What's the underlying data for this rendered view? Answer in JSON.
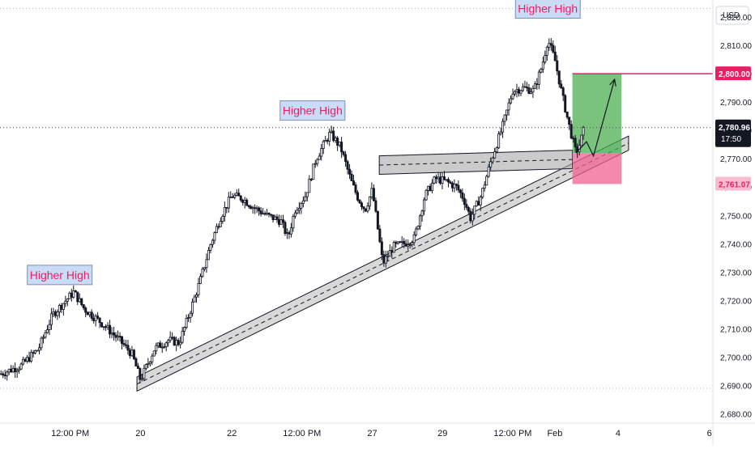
{
  "chart_data": {
    "type": "candlestick",
    "currency": "USD",
    "y_ticks": [
      "2,680.00",
      "2,690.00",
      "2,700.00",
      "2,710.00",
      "2,720.00",
      "2,730.00",
      "2,740.00",
      "2,750.00",
      "2,760.00",
      "2,770.00",
      "2,780.00",
      "2,790.00",
      "2,800.00",
      "2,810.00",
      "2,820.00"
    ],
    "ylim": [
      2677,
      2826
    ],
    "x_ticks": [
      {
        "label": "12:00 PM",
        "x": 1.0
      },
      {
        "label": "20",
        "x": 2.0
      },
      {
        "label": "22",
        "x": 3.3
      },
      {
        "label": "12:00 PM",
        "x": 4.3
      },
      {
        "label": "27",
        "x": 5.3
      },
      {
        "label": "29",
        "x": 6.3
      },
      {
        "label": "12:00 PM",
        "x": 7.3
      },
      {
        "label": "Feb",
        "x": 7.9
      },
      {
        "label": "4",
        "x": 8.8
      },
      {
        "label": "6",
        "x": 10.1
      }
    ],
    "price_path": [
      [
        0.0,
        2694
      ],
      [
        0.3,
        2697
      ],
      [
        0.55,
        2703
      ],
      [
        0.75,
        2715
      ],
      [
        0.9,
        2719
      ],
      [
        1.05,
        2723
      ],
      [
        1.2,
        2717
      ],
      [
        1.45,
        2712
      ],
      [
        1.7,
        2706
      ],
      [
        1.88,
        2701
      ],
      [
        2.0,
        2692
      ],
      [
        2.2,
        2703
      ],
      [
        2.4,
        2706
      ],
      [
        2.55,
        2705
      ],
      [
        2.65,
        2712
      ],
      [
        2.85,
        2727
      ],
      [
        3.0,
        2740
      ],
      [
        3.15,
        2750
      ],
      [
        3.3,
        2757
      ],
      [
        3.45,
        2756
      ],
      [
        3.6,
        2753
      ],
      [
        3.8,
        2750
      ],
      [
        4.0,
        2748
      ],
      [
        4.1,
        2742
      ],
      [
        4.2,
        2752
      ],
      [
        4.35,
        2757
      ],
      [
        4.5,
        2770
      ],
      [
        4.7,
        2779
      ],
      [
        4.85,
        2774
      ],
      [
        5.0,
        2762
      ],
      [
        5.1,
        2756
      ],
      [
        5.2,
        2752
      ],
      [
        5.3,
        2759
      ],
      [
        5.45,
        2733
      ],
      [
        5.6,
        2739
      ],
      [
        5.75,
        2740
      ],
      [
        5.9,
        2742
      ],
      [
        6.05,
        2757
      ],
      [
        6.2,
        2763
      ],
      [
        6.35,
        2762
      ],
      [
        6.5,
        2760
      ],
      [
        6.6,
        2756
      ],
      [
        6.7,
        2749
      ],
      [
        6.85,
        2757
      ],
      [
        7.0,
        2770
      ],
      [
        7.15,
        2781
      ],
      [
        7.3,
        2794
      ],
      [
        7.45,
        2795
      ],
      [
        7.6,
        2794
      ],
      [
        7.72,
        2803
      ],
      [
        7.8,
        2812
      ],
      [
        7.9,
        2805
      ],
      [
        8.0,
        2793
      ],
      [
        8.1,
        2782
      ],
      [
        8.2,
        2772
      ],
      [
        8.25,
        2775
      ],
      [
        8.32,
        2780.96
      ]
    ],
    "current_price": "2,780.96",
    "countdown": "17:50",
    "take_profit": "2,800.00",
    "stop_loss": "2,761.07",
    "position": {
      "entry": 2772,
      "target": 2800,
      "stop": 2761.07,
      "x_start": 8.15,
      "x_end": 8.85
    },
    "zones": {
      "trend_channel": {
        "x_start": 1.95,
        "x_end": 8.95,
        "upper_start": 2693,
        "upper_end": 2778,
        "lower_start": 2688,
        "lower_end": 2773
      },
      "support_band": {
        "x_start": 5.4,
        "x_end": 8.15,
        "top_start": 2771,
        "top_end": 2773,
        "bottom_start": 2764.5,
        "bottom_end": 2766.5
      }
    },
    "annotations": [
      {
        "label": "Higher High",
        "x": 0.85,
        "y": 2729
      },
      {
        "label": "Higher High",
        "x": 4.45,
        "y": 2787
      },
      {
        "label": "Higher High",
        "x": 7.8,
        "y": 2823
      }
    ],
    "projection": [
      [
        8.2,
        2772
      ],
      [
        8.35,
        2776
      ],
      [
        8.45,
        2771
      ],
      [
        8.75,
        2798
      ]
    ],
    "dotted_levels": [
      2823,
      2781,
      2689
    ],
    "colors": {
      "up": "#089981",
      "down": "#f23645",
      "candle": "#131722",
      "tp_zone": "#4caf50",
      "sl_zone": "#f06292",
      "tp_line": "#e91e63",
      "label_text": "#e91e63",
      "label_bg": "#c9dbf5",
      "band": "#a9a9a9"
    }
  },
  "ui": {
    "annotation_1": "Higher High",
    "annotation_2": "Higher High",
    "annotation_3": "Higher High"
  }
}
